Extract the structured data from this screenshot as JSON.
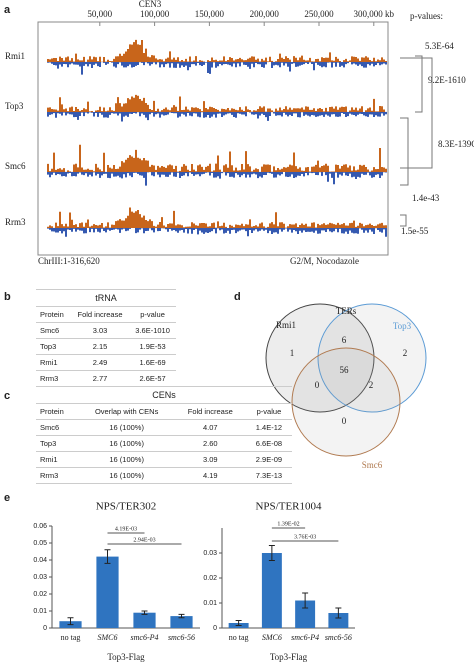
{
  "panel_a": {
    "label": "a",
    "centromere": "CEN3",
    "xlim": [
      1,
      316620
    ],
    "xticks": [
      {
        "value": 50000,
        "label": "50,000"
      },
      {
        "value": 100000,
        "label": "100,000"
      },
      {
        "value": 150000,
        "label": "150,000"
      },
      {
        "value": 200000,
        "label": "200,000"
      },
      {
        "value": 250000,
        "label": "250,000"
      },
      {
        "value": 300000,
        "label": "300,000 kb"
      }
    ],
    "tracks": [
      "Rmi1",
      "Top3",
      "Smc6",
      "Rrm3"
    ],
    "pvalues_title": "p-values:",
    "pvalues": [
      "5.3E-64",
      "9.2E-1610",
      "8.3E-139C",
      "1.4e-43",
      "1.5e-55"
    ],
    "region": "ChrIII:1-316,620",
    "condition": "G2/M, Nocodazole"
  },
  "panel_b": {
    "label": "b",
    "title": "tRNA",
    "header": [
      "Protein",
      "Fold increase",
      "p-value"
    ],
    "rows": [
      [
        "Smc6",
        "3.03",
        "3.6E-1010"
      ],
      [
        "Top3",
        "2.15",
        "1.9E-53"
      ],
      [
        "Rmi1",
        "2.49",
        "1.6E-69"
      ],
      [
        "Rrm3",
        "2.77",
        "2.6E-57"
      ]
    ]
  },
  "panel_c": {
    "label": "c",
    "title": "CENs",
    "header": [
      "Protein",
      "Overlap with CENs",
      "Fold increase",
      "p-value"
    ],
    "rows": [
      [
        "Smc6",
        "16 (100%)",
        "4.07",
        "1.4E-12"
      ],
      [
        "Top3",
        "16 (100%)",
        "2.60",
        "6.6E-08"
      ],
      [
        "Rmi1",
        "16 (100%)",
        "3.09",
        "2.9E-09"
      ],
      [
        "Rrm3",
        "16 (100%)",
        "4.19",
        "7.3E-13"
      ]
    ]
  },
  "panel_d": {
    "label": "d",
    "sets": [
      "TERs",
      "Rmi1",
      "Top3",
      "Smc6"
    ],
    "regions": [
      "1",
      "6",
      "2",
      "56",
      "0",
      "2",
      "0"
    ]
  },
  "panel_e": {
    "label": "e"
  },
  "chart_data": [
    {
      "type": "bar",
      "title": "NPS/TER302",
      "categories": [
        "no tag",
        "SMC6",
        "smc6-P4",
        "smc6-56"
      ],
      "values": [
        0.004,
        0.042,
        0.009,
        0.007
      ],
      "errors": [
        0.002,
        0.004,
        0.001,
        0.001
      ],
      "color": "#2f74c0",
      "ylim": [
        0,
        0.06
      ],
      "yticks": [
        0,
        0.01,
        0.02,
        0.03,
        0.04,
        0.05,
        0.06
      ],
      "xlabel": "Top3-Flag",
      "annotations": [
        "4.19E-03",
        "2.94E-03"
      ]
    },
    {
      "type": "bar",
      "title": "NPS/TER1004",
      "categories": [
        "no tag",
        "SMC6",
        "smc6-P4",
        "smc6-56"
      ],
      "values": [
        0.002,
        0.03,
        0.011,
        0.006
      ],
      "errors": [
        0.001,
        0.003,
        0.003,
        0.002
      ],
      "color": "#2f74c0",
      "ylim": [
        0,
        0.04
      ],
      "yticks": [
        0,
        0.01,
        0.02,
        0.03
      ],
      "xlabel": "Top3-Flag",
      "annotations": [
        "1.39E-02",
        "3.76E-03"
      ]
    }
  ]
}
